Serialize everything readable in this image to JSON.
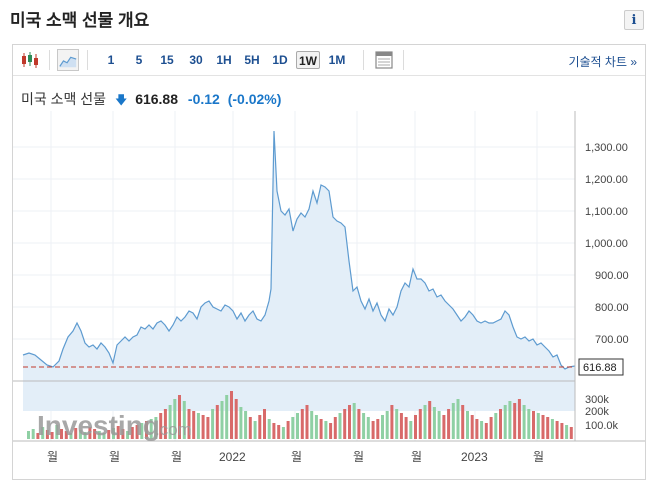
{
  "page": {
    "title": "미국 소맥 선물 개요",
    "info_label": "i"
  },
  "toolbar": {
    "periods": [
      "1",
      "5",
      "15",
      "30",
      "1H",
      "5H",
      "1D",
      "1W",
      "1M"
    ],
    "active_period": "1W",
    "technical_label": "기술적 차트 »",
    "icons": [
      "candlestick-icon",
      "area-chart-icon",
      "calendar-table-icon"
    ]
  },
  "quote": {
    "name": "미국 소맥 선물",
    "price": "616.88",
    "change": "-0.12",
    "change_pct": "(-0.02%)",
    "direction_icon": "down-arrow-icon",
    "change_color": "#1a77c9"
  },
  "price_axis": {
    "ticks": [
      "1,300.00",
      "1,200.00",
      "1,100.00",
      "1,000.00",
      "900.00",
      "800.00",
      "700.00"
    ],
    "current_label": "616.88"
  },
  "volume_axis": {
    "ticks": [
      "300k",
      "200k",
      "100.0k"
    ]
  },
  "x_axis": {
    "labels": [
      "월",
      "월",
      "월",
      "2022",
      "월",
      "월",
      "월",
      "2023",
      "월"
    ]
  },
  "watermark": {
    "brand": "Investing",
    "suffix": ".com"
  },
  "colors": {
    "line": "#5e9bd0",
    "fill": "#e3eef8",
    "up": "#8fd0a4",
    "down": "#d86a6a",
    "current_line": "#c0392b"
  }
}
